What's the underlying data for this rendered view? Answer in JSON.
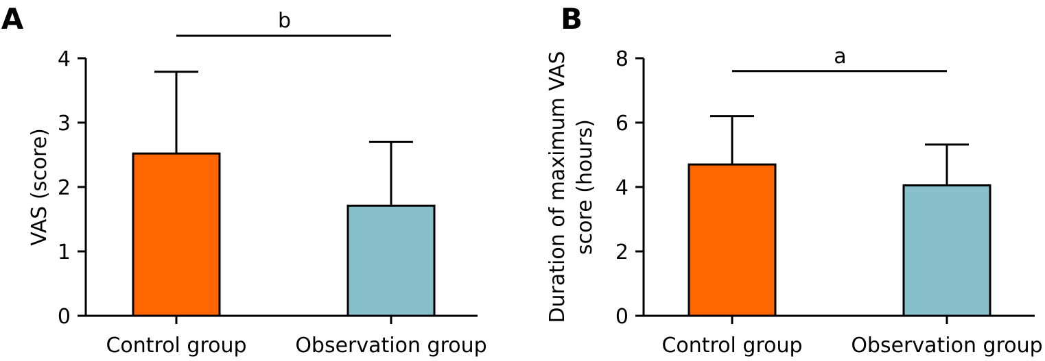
{
  "chart_data": [
    {
      "type": "bar",
      "panel_label": "A",
      "categories": [
        "Control group",
        "Observation group"
      ],
      "values": [
        2.52,
        1.71
      ],
      "errors": [
        1.27,
        0.99
      ],
      "colors": [
        "#ff6600",
        "#87bfcb"
      ],
      "ylabel": "VAS (score)",
      "ylabel_lines": [
        "VAS (score)"
      ],
      "ylim": [
        0,
        4
      ],
      "yticks": [
        0,
        1,
        2,
        3,
        4
      ],
      "significance": {
        "label": "b",
        "y": 4.35
      },
      "grid": false
    },
    {
      "type": "bar",
      "panel_label": "B",
      "categories": [
        "Control group",
        "Observation group"
      ],
      "values": [
        4.7,
        4.05
      ],
      "errors": [
        1.5,
        1.27
      ],
      "colors": [
        "#ff6600",
        "#87bfcb"
      ],
      "ylabel": "Duration of maximum VAS score (hours)",
      "ylabel_lines": [
        "Duration of maximum VAS",
        "score (hours)"
      ],
      "ylim": [
        0,
        8
      ],
      "yticks": [
        0,
        2,
        4,
        6,
        8
      ],
      "significance": {
        "label": "a",
        "y": 7.6
      },
      "grid": false
    }
  ]
}
